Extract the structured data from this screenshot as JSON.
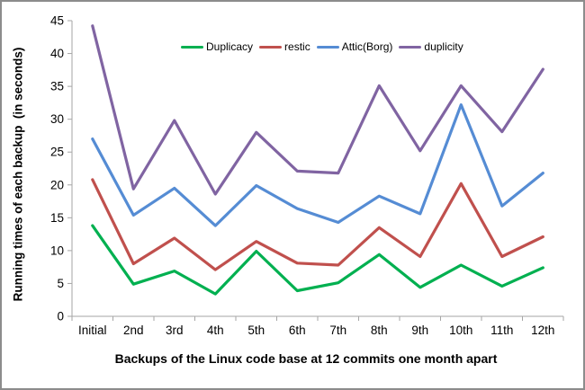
{
  "chart_data": {
    "type": "line",
    "title": "",
    "categories": [
      "Initial",
      "2nd",
      "3rd",
      "4th",
      "5th",
      "6th",
      "7th",
      "8th",
      "9th",
      "10th",
      "11th",
      "12th"
    ],
    "series": [
      {
        "name": "Duplicacy",
        "color": "#00B050",
        "values": [
          13.8,
          4.9,
          6.9,
          3.4,
          9.9,
          3.9,
          5.1,
          9.4,
          4.4,
          7.8,
          4.6,
          7.4
        ]
      },
      {
        "name": "restic",
        "color": "#C0504D",
        "values": [
          20.8,
          8.0,
          11.9,
          7.1,
          11.4,
          8.1,
          7.8,
          13.5,
          9.1,
          20.2,
          9.1,
          12.1
        ]
      },
      {
        "name": "Attic(Borg)",
        "color": "#558CD4",
        "values": [
          27.0,
          15.4,
          19.5,
          13.8,
          19.9,
          16.4,
          14.3,
          18.3,
          15.6,
          32.2,
          16.8,
          21.8
        ]
      },
      {
        "name": "duplicity",
        "color": "#8064A2",
        "values": [
          44.2,
          19.4,
          29.8,
          18.6,
          28.0,
          22.1,
          21.8,
          35.1,
          25.2,
          35.1,
          28.1,
          37.6
        ]
      }
    ],
    "xlabel": "Backups of the Linux code base at 12 commits one month apart",
    "ylabel": "Running times of each backup  (in seconds)",
    "ylim": [
      0,
      45
    ],
    "ytick_step": 5,
    "grid": false,
    "legend_position": "top-center",
    "axis_color": "#A6A6A6",
    "text_color": "#000000"
  }
}
